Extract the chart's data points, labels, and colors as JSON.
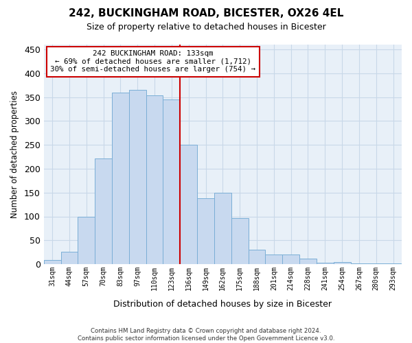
{
  "title": "242, BUCKINGHAM ROAD, BICESTER, OX26 4EL",
  "subtitle": "Size of property relative to detached houses in Bicester",
  "xlabel": "Distribution of detached houses by size in Bicester",
  "ylabel": "Number of detached properties",
  "footer_line1": "Contains HM Land Registry data © Crown copyright and database right 2024.",
  "footer_line2": "Contains public sector information licensed under the Open Government Licence v3.0.",
  "bar_labels": [
    "31sqm",
    "44sqm",
    "57sqm",
    "70sqm",
    "83sqm",
    "97sqm",
    "110sqm",
    "123sqm",
    "136sqm",
    "149sqm",
    "162sqm",
    "175sqm",
    "188sqm",
    "201sqm",
    "214sqm",
    "228sqm",
    "241sqm",
    "254sqm",
    "267sqm",
    "280sqm",
    "293sqm"
  ],
  "bar_values": [
    9,
    26,
    99,
    221,
    360,
    365,
    354,
    345,
    250,
    138,
    149,
    97,
    30,
    20,
    20,
    11,
    3,
    5,
    2,
    1,
    1
  ],
  "bar_color": "#c8d9ef",
  "bar_edge_color": "#7aaed6",
  "vline_x": 7.5,
  "vline_color": "#cc0000",
  "annotation_title": "242 BUCKINGHAM ROAD: 133sqm",
  "annotation_line1": "← 69% of detached houses are smaller (1,712)",
  "annotation_line2": "30% of semi-detached houses are larger (754) →",
  "annotation_box_color": "#ffffff",
  "annotation_box_edge": "#cc0000",
  "ylim": [
    0,
    460
  ],
  "yticks": [
    0,
    50,
    100,
    150,
    200,
    250,
    300,
    350,
    400,
    450
  ],
  "xlim": [
    -0.5,
    20.5
  ],
  "background_color": "#ffffff",
  "plot_background": "#e8f0f8",
  "grid_color": "#c8d8e8"
}
